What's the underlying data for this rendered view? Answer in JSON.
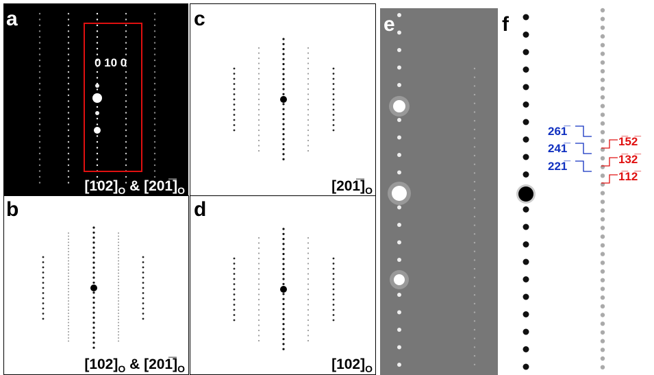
{
  "panels": [
    {
      "label": "a",
      "annotation": "0 10 0",
      "caption": [
        "[102]",
        "O",
        " & [201̅]",
        "O"
      ]
    },
    {
      "label": "b",
      "caption": [
        "[102]",
        "O",
        " & [201̅]",
        "O"
      ]
    },
    {
      "label": "c",
      "caption": [
        "[201̅]",
        "O"
      ]
    },
    {
      "label": "d",
      "caption": [
        "[102]",
        "O"
      ]
    },
    {
      "label": "e"
    },
    {
      "label": "f",
      "indices_blue": [
        "261̅",
        "241̅",
        "221̅"
      ],
      "indices_red": [
        "1̅52̅",
        "1̅32̅",
        "1̅12̅"
      ]
    }
  ]
}
